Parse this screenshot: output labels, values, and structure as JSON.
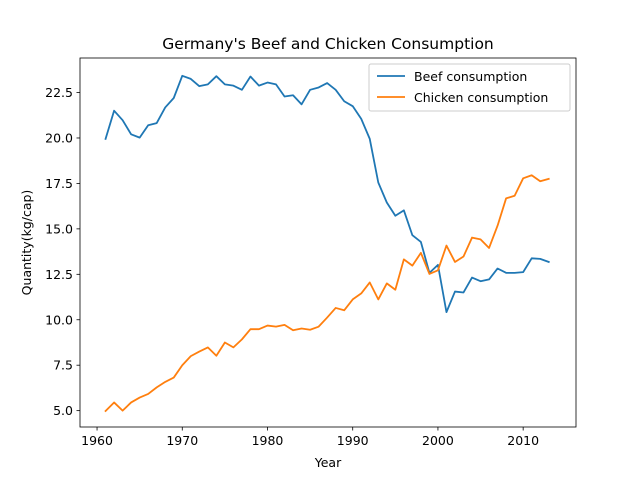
{
  "chart_data": {
    "type": "line",
    "title": "Germany's Beef and Chicken Consumption",
    "xlabel": "Year",
    "ylabel": "Quantity(kg/cap)",
    "xlim": [
      1958,
      2016.2
    ],
    "ylim": [
      4.1,
      24.4
    ],
    "xticks": [
      1960,
      1970,
      1980,
      1990,
      2000,
      2010
    ],
    "yticks": [
      5.0,
      7.5,
      10.0,
      12.5,
      15.0,
      17.5,
      20.0,
      22.5
    ],
    "ytick_labels": [
      "5.0",
      "7.5",
      "10.0",
      "12.5",
      "15.0",
      "17.5",
      "20.0",
      "22.5"
    ],
    "grid": false,
    "legend_position": "top-right",
    "x": [
      1961,
      1962,
      1963,
      1964,
      1965,
      1966,
      1967,
      1968,
      1969,
      1970,
      1971,
      1972,
      1973,
      1974,
      1975,
      1976,
      1977,
      1978,
      1979,
      1980,
      1981,
      1982,
      1983,
      1984,
      1985,
      1986,
      1987,
      1988,
      1989,
      1990,
      1991,
      1992,
      1993,
      1994,
      1995,
      1996,
      1997,
      1998,
      1999,
      2000,
      2001,
      2002,
      2003,
      2004,
      2005,
      2006,
      2007,
      2008,
      2009,
      2010,
      2011,
      2012,
      2013
    ],
    "series": [
      {
        "name": "Beef consumption",
        "color": "#1f77b4",
        "values": [
          19.95,
          21.5,
          20.98,
          20.2,
          20.02,
          20.7,
          20.82,
          21.68,
          22.2,
          23.42,
          23.25,
          22.85,
          22.95,
          23.4,
          22.95,
          22.88,
          22.65,
          23.38,
          22.88,
          23.05,
          22.95,
          22.28,
          22.35,
          21.85,
          22.65,
          22.78,
          23.02,
          22.65,
          22.02,
          21.75,
          21.05,
          19.95,
          17.55,
          16.45,
          15.72,
          16.02,
          14.65,
          14.28,
          12.58,
          13.02,
          10.42,
          11.55,
          11.5,
          12.32,
          12.12,
          12.22,
          12.82,
          12.58,
          12.58,
          12.62,
          13.38,
          13.35,
          13.18
        ]
      },
      {
        "name": "Chicken consumption",
        "color": "#ff7f0e",
        "values": [
          4.98,
          5.45,
          5.0,
          5.45,
          5.72,
          5.92,
          6.28,
          6.58,
          6.82,
          7.5,
          8.0,
          8.25,
          8.48,
          8.02,
          8.75,
          8.48,
          8.92,
          9.48,
          9.48,
          9.68,
          9.62,
          9.72,
          9.42,
          9.52,
          9.45,
          9.62,
          10.12,
          10.65,
          10.52,
          11.12,
          11.45,
          12.05,
          11.12,
          12.0,
          11.65,
          13.32,
          12.98,
          13.68,
          12.52,
          12.72,
          14.08,
          13.18,
          13.48,
          14.52,
          14.42,
          13.95,
          15.18,
          16.68,
          16.82,
          17.78,
          17.95,
          17.62,
          17.75
        ]
      }
    ]
  }
}
